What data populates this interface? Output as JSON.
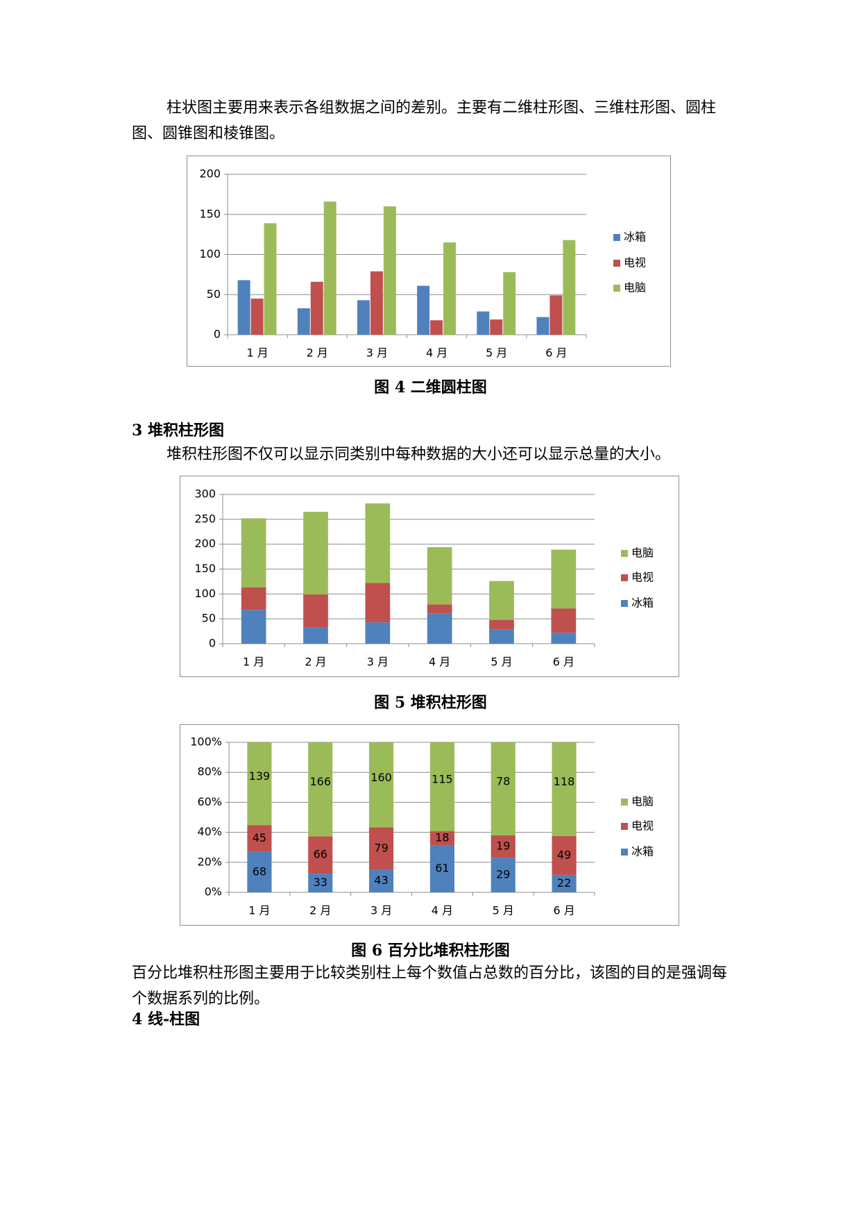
{
  "paragraphs": [
    "柱状图主要用来表示各组数据之间的差别。主要有二维柱形图、三维柱形图、圆柱图、圆锥图和棱锥图。",
    "堆积柱形图不仅可以显示同类别中每种数据的大小还可以显示总量的大小。",
    "百分比堆积柱形图主要用于比较类别柱上每个数值占总数的百分比，该图的目的是强调每个数据系列的比例。"
  ],
  "headings": [
    "3 堆积柱形图",
    "4 线-柱图"
  ],
  "captions": [
    "图 4 二维圆柱图",
    "图 5 堆积柱形图",
    "图 6 百分比堆积柱形图"
  ],
  "chart_data": [
    {
      "type": "bar",
      "stacking": "none",
      "categories": [
        "1 月",
        "2 月",
        "3 月",
        "4 月",
        "5 月",
        "6 月"
      ],
      "series": [
        {
          "name": "冰箱",
          "color": "#4f81bd",
          "values": [
            68,
            33,
            43,
            61,
            29,
            22
          ]
        },
        {
          "name": "电视",
          "color": "#c0504d",
          "values": [
            45,
            66,
            79,
            18,
            19,
            49
          ]
        },
        {
          "name": "电脑",
          "color": "#9bbb59",
          "values": [
            139,
            166,
            160,
            115,
            78,
            118
          ]
        }
      ],
      "ylim": [
        0,
        200
      ],
      "yticks": [
        0,
        50,
        100,
        150,
        200
      ],
      "grid": true,
      "legend": {
        "position": "right",
        "reversed": false
      }
    },
    {
      "type": "bar",
      "stacking": "normal",
      "categories": [
        "1 月",
        "2 月",
        "3 月",
        "4 月",
        "5 月",
        "6 月"
      ],
      "series": [
        {
          "name": "冰箱",
          "color": "#4f81bd",
          "values": [
            68,
            33,
            43,
            61,
            29,
            22
          ]
        },
        {
          "name": "电视",
          "color": "#c0504d",
          "values": [
            45,
            66,
            79,
            18,
            19,
            49
          ]
        },
        {
          "name": "电脑",
          "color": "#9bbb59",
          "values": [
            139,
            166,
            160,
            115,
            78,
            118
          ]
        }
      ],
      "ylim": [
        0,
        300
      ],
      "yticks": [
        0,
        50,
        100,
        150,
        200,
        250,
        300
      ],
      "grid": true,
      "legend": {
        "position": "right",
        "reversed": true
      }
    },
    {
      "type": "bar",
      "stacking": "percent",
      "show_values": true,
      "categories": [
        "1 月",
        "2 月",
        "3 月",
        "4 月",
        "5 月",
        "6 月"
      ],
      "series": [
        {
          "name": "冰箱",
          "color": "#4f81bd",
          "values": [
            68,
            33,
            43,
            61,
            29,
            22
          ]
        },
        {
          "name": "电视",
          "color": "#c0504d",
          "values": [
            45,
            66,
            79,
            18,
            19,
            49
          ]
        },
        {
          "name": "电脑",
          "color": "#9bbb59",
          "values": [
            139,
            166,
            160,
            115,
            78,
            118
          ]
        }
      ],
      "ylim": [
        0,
        100
      ],
      "yticks": [
        {
          "value": 0,
          "label": "0%"
        },
        {
          "value": 20,
          "label": "20%"
        },
        {
          "value": 40,
          "label": "40%"
        },
        {
          "value": 60,
          "label": "60%"
        },
        {
          "value": 80,
          "label": "80%"
        },
        {
          "value": 100,
          "label": "100%"
        }
      ],
      "grid": true,
      "legend": {
        "position": "right",
        "reversed": true
      }
    }
  ]
}
